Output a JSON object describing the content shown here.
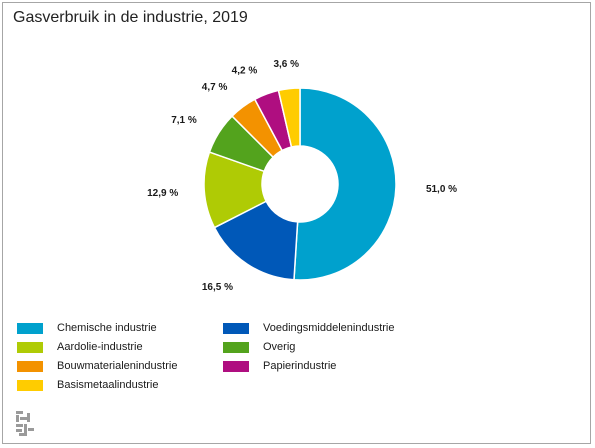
{
  "title": "Gasverbruik in de industrie, 2019",
  "chart_data": {
    "type": "pie",
    "subtype": "donut",
    "title": "Gasverbruik in de industrie, 2019",
    "unit": "%",
    "legend_position": "bottom",
    "slices": [
      {
        "name": "Chemische industrie",
        "value": 51.0,
        "label": "51,0 %",
        "color": "#00a1cd"
      },
      {
        "name": "Voedingsmiddelenindustrie",
        "value": 16.5,
        "label": "16,5 %",
        "color": "#0058b8"
      },
      {
        "name": "Aardolie-industrie",
        "value": 12.9,
        "label": "12,9 %",
        "color": "#afcb05"
      },
      {
        "name": "Overig",
        "value": 7.1,
        "label": "7,1 %",
        "color": "#53a31d"
      },
      {
        "name": "Bouwmaterialenindustrie",
        "value": 4.7,
        "label": "4,7 %",
        "color": "#f39200"
      },
      {
        "name": "Papierindustrie",
        "value": 4.2,
        "label": "4,2 %",
        "color": "#af0e80"
      },
      {
        "name": "Basismetaalindustrie",
        "value": 3.6,
        "label": "3,6 %",
        "color": "#ffcc00"
      }
    ],
    "legend_order": [
      "Chemische industrie",
      "Voedingsmiddelenindustrie",
      "Aardolie-industrie",
      "Overig",
      "Bouwmaterialenindustrie",
      "Papierindustrie",
      "Basismetaalindustrie"
    ]
  },
  "logo_icon": "cbs-logo-icon"
}
